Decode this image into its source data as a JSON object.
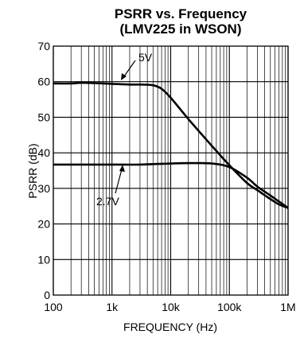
{
  "chart_data": {
    "type": "line",
    "title": "PSRR vs. Frequency",
    "subtitle": "(LMV225 in WSON)",
    "xlabel": "FREQUENCY (Hz)",
    "ylabel": "PSRR (dB)",
    "xscale": "log",
    "xlim": [
      100,
      1000000
    ],
    "ylim": [
      0,
      70
    ],
    "grid": true,
    "x_ticks": [
      100,
      1000,
      10000,
      100000,
      1000000
    ],
    "x_tick_labels": [
      "100",
      "1k",
      "10k",
      "100k",
      "1M"
    ],
    "y_ticks": [
      0,
      10,
      20,
      30,
      40,
      50,
      60,
      70
    ],
    "y_tick_labels": [
      "0",
      "10",
      "20",
      "30",
      "40",
      "50",
      "60",
      "70"
    ],
    "series": [
      {
        "name": "5V",
        "x": [
          100,
          200,
          300,
          500,
          1000,
          2000,
          3000,
          5000,
          7000,
          10000,
          20000,
          50000,
          100000,
          200000,
          300000,
          500000,
          700000,
          1000000
        ],
        "y": [
          59.5,
          59.5,
          59.7,
          59.6,
          59.4,
          59.2,
          59.2,
          59.0,
          58.0,
          55.5,
          49.5,
          42.0,
          36.5,
          31.5,
          29.5,
          27.0,
          25.5,
          24.5
        ]
      },
      {
        "name": "2.7V",
        "x": [
          100,
          300,
          1000,
          3000,
          10000,
          20000,
          50000,
          100000,
          200000,
          300000,
          500000,
          1000000
        ],
        "y": [
          36.7,
          36.7,
          36.7,
          36.7,
          37.0,
          37.1,
          37.0,
          36.0,
          33.0,
          30.5,
          28.0,
          24.5
        ]
      }
    ]
  }
}
